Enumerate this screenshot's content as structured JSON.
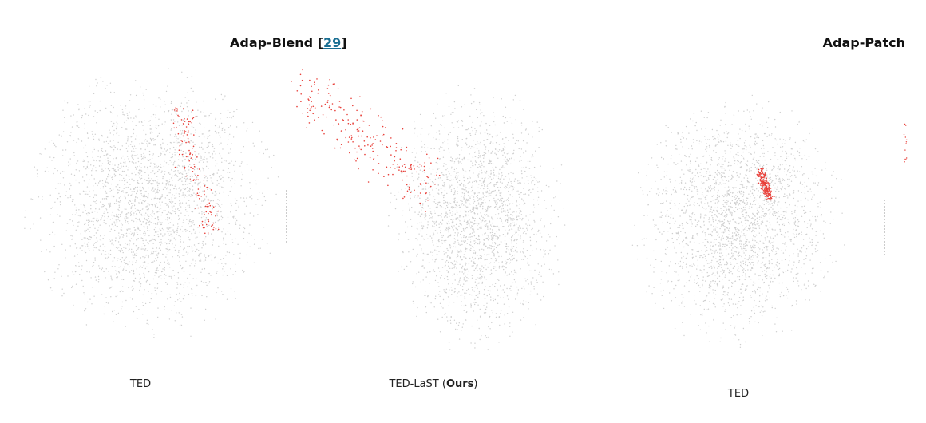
{
  "panels": [
    {
      "title": {
        "text": "Adap-Blend",
        "open": "[",
        "ref": "29",
        "close": "]"
      },
      "plots": [
        {
          "caption": {
            "before": "TED"
          }
        },
        {
          "caption": {
            "before": "TED-LaST (",
            "bold": "Ours",
            "after": ")"
          }
        }
      ]
    },
    {
      "title": {
        "text": "Adap-Patch"
      },
      "plots": [
        {
          "caption": {
            "before": "TED"
          }
        }
      ]
    }
  ]
}
